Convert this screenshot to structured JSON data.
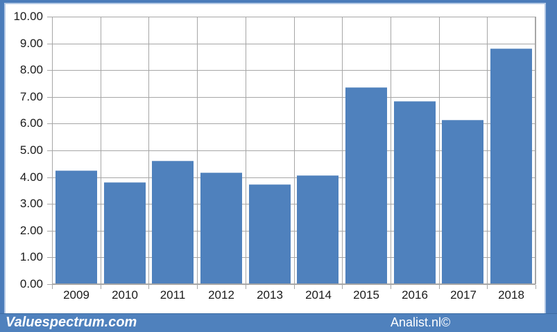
{
  "footer": {
    "left_brand": "Valuespectrum.com",
    "right_brand": "Analist.nl©"
  },
  "colors": {
    "bar": "#4F81BD",
    "frame": "#4B7CBA",
    "frame_inner": "#B3C8E4",
    "grid": "#A6A6A6",
    "axis_text": "#1A1A1A",
    "footer_bg": "#4F81BD",
    "footer_text": "#FFFFFF"
  },
  "chart_data": {
    "type": "bar",
    "title": "",
    "xlabel": "",
    "ylabel": "",
    "categories": [
      "2009",
      "2010",
      "2011",
      "2012",
      "2013",
      "2014",
      "2015",
      "2016",
      "2017",
      "2018"
    ],
    "values": [
      4.25,
      3.82,
      4.6,
      4.17,
      3.74,
      4.07,
      7.36,
      6.83,
      6.15,
      8.82
    ],
    "ylim": [
      0,
      10
    ],
    "yticks": [
      "0.00",
      "1.00",
      "2.00",
      "3.00",
      "4.00",
      "5.00",
      "6.00",
      "7.00",
      "8.00",
      "9.00",
      "10.00"
    ],
    "grid": true,
    "legend": false
  }
}
